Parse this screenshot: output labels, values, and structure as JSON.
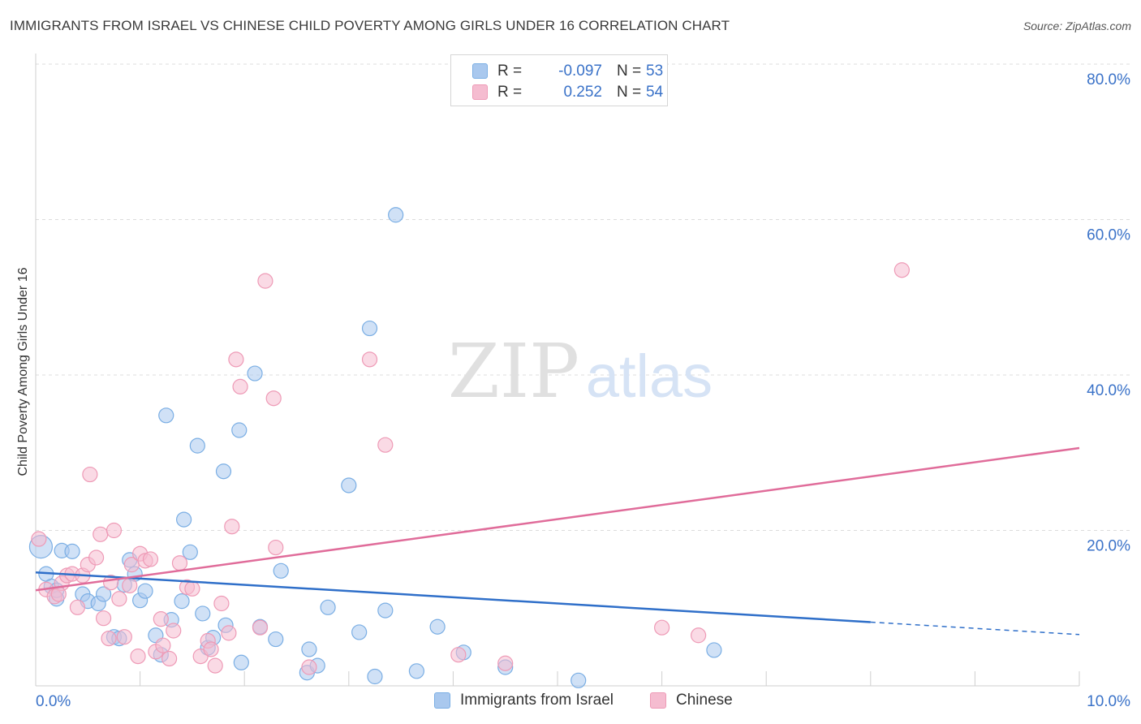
{
  "header": {
    "title": "IMMIGRANTS FROM ISRAEL VS CHINESE CHILD POVERTY AMONG GIRLS UNDER 16 CORRELATION CHART",
    "source": "Source: ZipAtlas.com"
  },
  "watermark": {
    "zip": "ZIP",
    "atlas": "atlas"
  },
  "legend_top": {
    "rows": [
      {
        "r_label": "R =",
        "r_value": "-0.097",
        "n_label": "N =",
        "n_value": "53",
        "color": "#a9c8ee"
      },
      {
        "r_label": "R =",
        "r_value": "0.252",
        "n_label": "N =",
        "n_value": "54",
        "color": "#f5bcd0"
      }
    ]
  },
  "legend_bottom": {
    "items": [
      {
        "label": "Immigrants from Israel",
        "color": "#a9c8ee"
      },
      {
        "label": "Chinese",
        "color": "#f5bcd0"
      }
    ]
  },
  "chart_data": {
    "type": "scatter",
    "title": "IMMIGRANTS FROM ISRAEL VS CHINESE CHILD POVERTY AMONG GIRLS UNDER 16 CORRELATION CHART",
    "xlabel": "",
    "ylabel": "Child Poverty Among Girls Under 16",
    "xlim": [
      0,
      10
    ],
    "ylim": [
      0,
      80
    ],
    "x_tick_labels": [
      {
        "value": 0,
        "label": "0.0%"
      },
      {
        "value": 10,
        "label": "10.0%"
      }
    ],
    "y_tick_labels": [
      {
        "value": 20,
        "label": "20.0%"
      },
      {
        "value": 40,
        "label": "40.0%"
      },
      {
        "value": 60,
        "label": "60.0%"
      },
      {
        "value": 80,
        "label": "80.0%"
      }
    ],
    "grid": true,
    "legend_position": "top-center",
    "series": [
      {
        "name": "Immigrants from Israel",
        "color": "#7aaee4",
        "fill": "#a9c8ee",
        "trend": {
          "x_start": 0,
          "y_start": 14.6,
          "x_solid_end": 8.0,
          "y_solid_end": 8.2,
          "x_end": 10,
          "y_end": 6.6,
          "color": "#2f6fc9"
        },
        "points": [
          [
            0.05,
            17.9,
            2
          ],
          [
            0.1,
            14.4,
            1
          ],
          [
            0.15,
            12.8,
            1
          ],
          [
            0.2,
            11.2,
            1
          ],
          [
            0.25,
            17.4,
            1
          ],
          [
            0.35,
            17.3,
            1
          ],
          [
            0.45,
            11.8,
            1
          ],
          [
            0.5,
            10.9,
            1
          ],
          [
            0.6,
            10.6,
            1
          ],
          [
            0.65,
            11.8,
            1
          ],
          [
            0.75,
            6.3,
            1
          ],
          [
            0.8,
            6.1,
            1
          ],
          [
            0.85,
            13.0,
            1
          ],
          [
            0.9,
            16.2,
            1
          ],
          [
            0.95,
            14.4,
            1
          ],
          [
            1.0,
            11.0,
            1
          ],
          [
            1.05,
            12.2,
            1
          ],
          [
            1.15,
            6.5,
            1
          ],
          [
            1.2,
            4.0,
            1
          ],
          [
            1.25,
            34.8,
            1
          ],
          [
            1.3,
            8.5,
            1
          ],
          [
            1.4,
            10.9,
            1
          ],
          [
            1.42,
            21.4,
            1
          ],
          [
            1.48,
            17.2,
            1
          ],
          [
            1.55,
            30.9,
            1
          ],
          [
            1.6,
            9.3,
            1
          ],
          [
            1.65,
            4.9,
            1
          ],
          [
            1.7,
            6.2,
            1
          ],
          [
            1.8,
            27.6,
            1
          ],
          [
            1.82,
            7.8,
            1
          ],
          [
            1.95,
            32.9,
            1
          ],
          [
            1.97,
            3.0,
            1
          ],
          [
            2.1,
            40.2,
            1
          ],
          [
            2.15,
            7.6,
            1
          ],
          [
            2.3,
            6.0,
            1
          ],
          [
            2.35,
            14.8,
            1
          ],
          [
            2.6,
            1.7,
            1
          ],
          [
            2.62,
            4.7,
            1
          ],
          [
            2.7,
            2.6,
            1
          ],
          [
            2.8,
            10.1,
            1
          ],
          [
            3.0,
            25.8,
            1
          ],
          [
            3.1,
            6.9,
            1
          ],
          [
            3.2,
            46.0,
            1
          ],
          [
            3.25,
            1.2,
            1
          ],
          [
            3.35,
            9.7,
            1
          ],
          [
            3.45,
            60.6,
            1
          ],
          [
            3.65,
            1.9,
            1
          ],
          [
            3.85,
            7.6,
            1
          ],
          [
            4.1,
            4.3,
            1
          ],
          [
            4.5,
            2.4,
            1
          ],
          [
            5.2,
            0.7,
            1
          ],
          [
            6.5,
            4.6,
            1
          ],
          [
            0.2,
            12.3,
            1
          ]
        ]
      },
      {
        "name": "Chinese",
        "color": "#ee9ab6",
        "fill": "#f5bcd0",
        "trend": {
          "x_start": 0,
          "y_start": 12.3,
          "x_end": 10,
          "y_end": 30.6,
          "color": "#e06c9a"
        },
        "points": [
          [
            0.03,
            18.9,
            1
          ],
          [
            0.1,
            12.4,
            1
          ],
          [
            0.18,
            11.5,
            1
          ],
          [
            0.25,
            13.2,
            1
          ],
          [
            0.3,
            14.2,
            1
          ],
          [
            0.35,
            14.4,
            1
          ],
          [
            0.4,
            10.1,
            1
          ],
          [
            0.45,
            14.2,
            1
          ],
          [
            0.5,
            15.6,
            1
          ],
          [
            0.52,
            27.2,
            1
          ],
          [
            0.58,
            16.5,
            1
          ],
          [
            0.62,
            19.5,
            1
          ],
          [
            0.65,
            8.7,
            1
          ],
          [
            0.7,
            6.1,
            1
          ],
          [
            0.72,
            13.3,
            1
          ],
          [
            0.75,
            20.0,
            1
          ],
          [
            0.8,
            11.2,
            1
          ],
          [
            0.85,
            6.3,
            1
          ],
          [
            0.9,
            12.9,
            1
          ],
          [
            0.92,
            15.6,
            1
          ],
          [
            0.98,
            3.8,
            1
          ],
          [
            1.0,
            17.0,
            1
          ],
          [
            1.05,
            16.1,
            1
          ],
          [
            1.1,
            16.3,
            1
          ],
          [
            1.15,
            4.4,
            1
          ],
          [
            1.2,
            8.6,
            1
          ],
          [
            1.22,
            5.2,
            1
          ],
          [
            1.28,
            3.5,
            1
          ],
          [
            1.32,
            7.1,
            1
          ],
          [
            1.38,
            15.8,
            1
          ],
          [
            1.45,
            12.7,
            1
          ],
          [
            1.58,
            3.8,
            1
          ],
          [
            1.65,
            5.8,
            1
          ],
          [
            1.68,
            4.7,
            1
          ],
          [
            1.72,
            2.6,
            1
          ],
          [
            1.78,
            10.6,
            1
          ],
          [
            1.85,
            6.8,
            1
          ],
          [
            1.88,
            20.5,
            1
          ],
          [
            1.92,
            42.0,
            1
          ],
          [
            1.96,
            38.5,
            1
          ],
          [
            2.15,
            7.5,
            1
          ],
          [
            2.2,
            52.1,
            1
          ],
          [
            2.28,
            37.0,
            1
          ],
          [
            2.3,
            17.8,
            1
          ],
          [
            2.62,
            2.4,
            1
          ],
          [
            3.2,
            42.0,
            1
          ],
          [
            3.35,
            31.0,
            1
          ],
          [
            4.05,
            4.0,
            1
          ],
          [
            4.5,
            2.9,
            1
          ],
          [
            6.0,
            7.5,
            1
          ],
          [
            6.35,
            6.5,
            1
          ],
          [
            8.3,
            53.5,
            1
          ],
          [
            0.22,
            11.8,
            1
          ],
          [
            1.5,
            12.5,
            1
          ]
        ]
      }
    ]
  }
}
